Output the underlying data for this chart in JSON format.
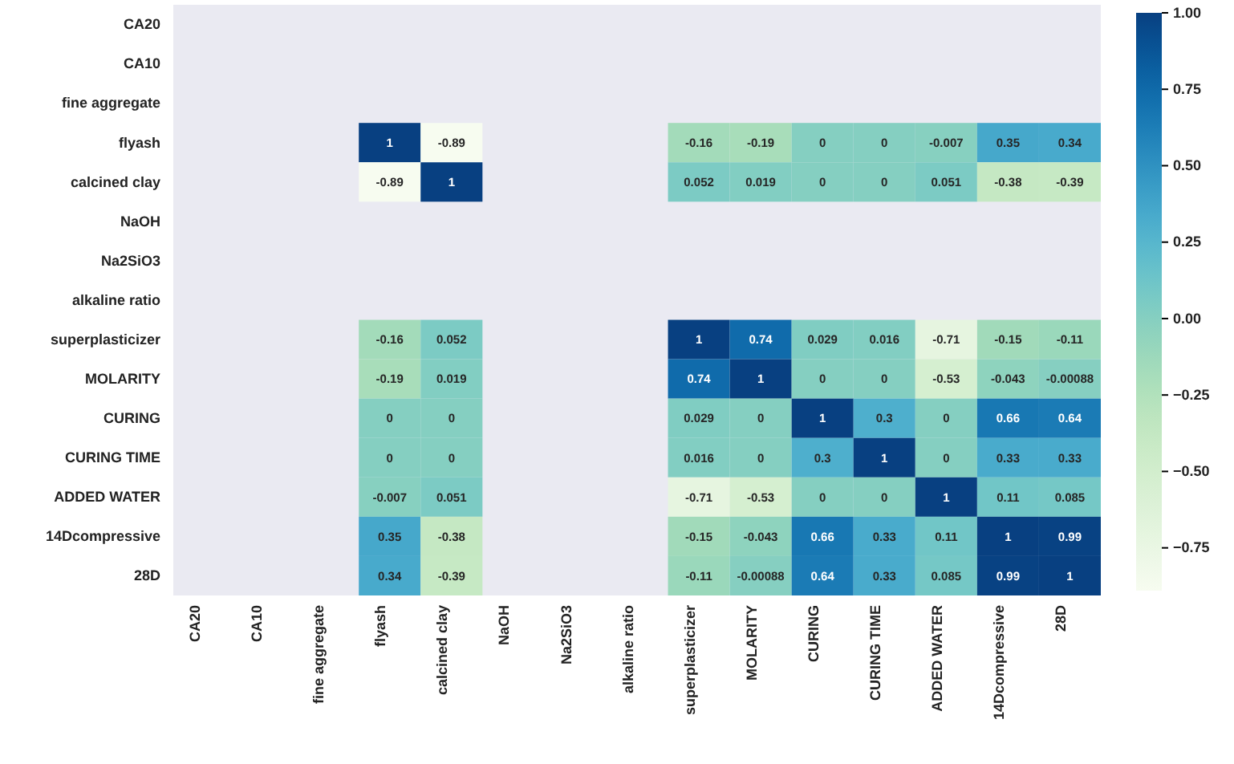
{
  "chart_data": {
    "type": "heatmap",
    "categories": [
      "CA20",
      "CA10",
      "fine aggregate",
      "flyash",
      "calcined clay",
      "NaOH",
      "Na2SiO3",
      "alkaline ratio",
      "superplasticizer",
      "MOLARITY",
      "CURING",
      "CURING TIME",
      "ADDED WATER",
      "14Dcompressive",
      "28D"
    ],
    "y_categories": [
      "CA20",
      "CA10",
      "fine aggregate",
      "flyash",
      "calcined clay",
      "NaOH",
      "Na2SiO3",
      "alkaline ratio",
      "superplasticizer",
      "MOLARITY",
      "CURING",
      "CURING TIME",
      "ADDED WATER",
      "14Dcompressive",
      "28D"
    ],
    "cells": [
      [
        null,
        null,
        null,
        null,
        null,
        null,
        null,
        null,
        null,
        null,
        null,
        null,
        null,
        null,
        null
      ],
      [
        null,
        null,
        null,
        null,
        null,
        null,
        null,
        null,
        null,
        null,
        null,
        null,
        null,
        null,
        null
      ],
      [
        null,
        null,
        null,
        null,
        null,
        null,
        null,
        null,
        null,
        null,
        null,
        null,
        null,
        null,
        null
      ],
      [
        null,
        null,
        null,
        1,
        -0.89,
        null,
        null,
        null,
        -0.16,
        -0.19,
        0,
        0,
        -0.007,
        0.35,
        0.34
      ],
      [
        null,
        null,
        null,
        -0.89,
        1,
        null,
        null,
        null,
        0.052,
        0.019,
        0,
        0,
        0.051,
        -0.38,
        -0.39
      ],
      [
        null,
        null,
        null,
        null,
        null,
        null,
        null,
        null,
        null,
        null,
        null,
        null,
        null,
        null,
        null
      ],
      [
        null,
        null,
        null,
        null,
        null,
        null,
        null,
        null,
        null,
        null,
        null,
        null,
        null,
        null,
        null
      ],
      [
        null,
        null,
        null,
        null,
        null,
        null,
        null,
        null,
        null,
        null,
        null,
        null,
        null,
        null,
        null
      ],
      [
        null,
        null,
        null,
        -0.16,
        0.052,
        null,
        null,
        null,
        1,
        0.74,
        0.029,
        0.016,
        -0.71,
        -0.15,
        -0.11
      ],
      [
        null,
        null,
        null,
        -0.19,
        0.019,
        null,
        null,
        null,
        0.74,
        1,
        0,
        0,
        -0.53,
        -0.043,
        -0.00088
      ],
      [
        null,
        null,
        null,
        0,
        0,
        null,
        null,
        null,
        0.029,
        0,
        1,
        0.3,
        0,
        0.66,
        0.64
      ],
      [
        null,
        null,
        null,
        0,
        0,
        null,
        null,
        null,
        0.016,
        0,
        0.3,
        1,
        0,
        0.33,
        0.33
      ],
      [
        null,
        null,
        null,
        -0.007,
        0.051,
        null,
        null,
        null,
        -0.71,
        -0.53,
        0,
        0,
        1,
        0.11,
        0.085
      ],
      [
        null,
        null,
        null,
        0.35,
        -0.38,
        null,
        null,
        null,
        -0.15,
        -0.043,
        0.66,
        0.33,
        0.11,
        1,
        0.99
      ],
      [
        null,
        null,
        null,
        0.34,
        -0.39,
        null,
        null,
        null,
        -0.11,
        -0.00088,
        0.64,
        0.33,
        0.085,
        0.99,
        1
      ]
    ],
    "clim": [
      -0.89,
      1
    ],
    "cticks": [
      {
        "value": -0.75,
        "label": "−0.75"
      },
      {
        "value": -0.5,
        "label": "−0.50"
      },
      {
        "value": -0.25,
        "label": "−0.25"
      },
      {
        "value": 0,
        "label": "0.00"
      },
      {
        "value": 0.25,
        "label": "0.25"
      },
      {
        "value": 0.5,
        "label": "0.50"
      },
      {
        "value": 0.75,
        "label": "0.75"
      },
      {
        "value": 1,
        "label": "1.00"
      }
    ],
    "data_labels": true
  }
}
